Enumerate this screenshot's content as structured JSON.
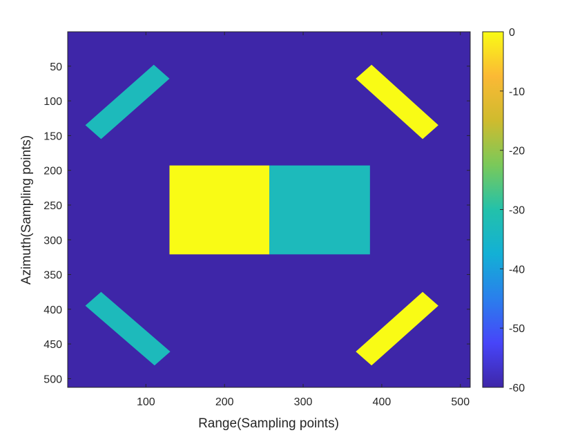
{
  "chart_data": {
    "type": "heatmap",
    "title": "",
    "xlabel": "Range(Sampling points)",
    "ylabel": "Azimuth(Sampling points)",
    "xlim": [
      0.5,
      512.5
    ],
    "ylim": [
      0.5,
      512.5
    ],
    "y_reversed": true,
    "xticks": [
      100,
      200,
      300,
      400,
      500
    ],
    "yticks": [
      50,
      100,
      150,
      200,
      250,
      300,
      350,
      400,
      450,
      500
    ],
    "colormap": "parula",
    "colorbar": {
      "limits": [
        -60,
        0
      ],
      "ticks": [
        0,
        -10,
        -20,
        -30,
        -40,
        -50,
        -60
      ],
      "stops": [
        "#3e26a8",
        "#4745f9",
        "#2a7fec",
        "#13b0d5",
        "#23c1aa",
        "#7ac95a",
        "#cfbb2e",
        "#fbb935",
        "#f9fb15"
      ]
    },
    "background": {
      "value": -60
    },
    "targets": [
      {
        "name": "upper-left strip",
        "shape": "rotated-strip",
        "value": -33,
        "corners": [
          [
            110,
            48
          ],
          [
            130,
            68
          ],
          [
            43,
            155
          ],
          [
            23,
            135
          ]
        ]
      },
      {
        "name": "upper-right strip",
        "shape": "rotated-strip",
        "value": 0,
        "corners": [
          [
            387,
            48
          ],
          [
            472,
            135
          ],
          [
            452,
            155
          ],
          [
            367,
            68
          ]
        ]
      },
      {
        "name": "center block left",
        "shape": "rectangle",
        "value": 0,
        "x": [
          130,
          257
        ],
        "y": [
          193,
          321
        ]
      },
      {
        "name": "center block right",
        "shape": "rectangle",
        "value": -33,
        "x": [
          257,
          385
        ],
        "y": [
          193,
          321
        ]
      },
      {
        "name": "lower-left strip",
        "shape": "rotated-strip",
        "value": -33,
        "corners": [
          [
            43,
            375
          ],
          [
            131,
            461
          ],
          [
            111,
            481
          ],
          [
            23,
            395
          ]
        ]
      },
      {
        "name": "lower-right strip",
        "shape": "rotated-strip",
        "value": 0,
        "corners": [
          [
            452,
            375
          ],
          [
            472,
            395
          ],
          [
            387,
            481
          ],
          [
            367,
            461
          ]
        ]
      }
    ]
  }
}
